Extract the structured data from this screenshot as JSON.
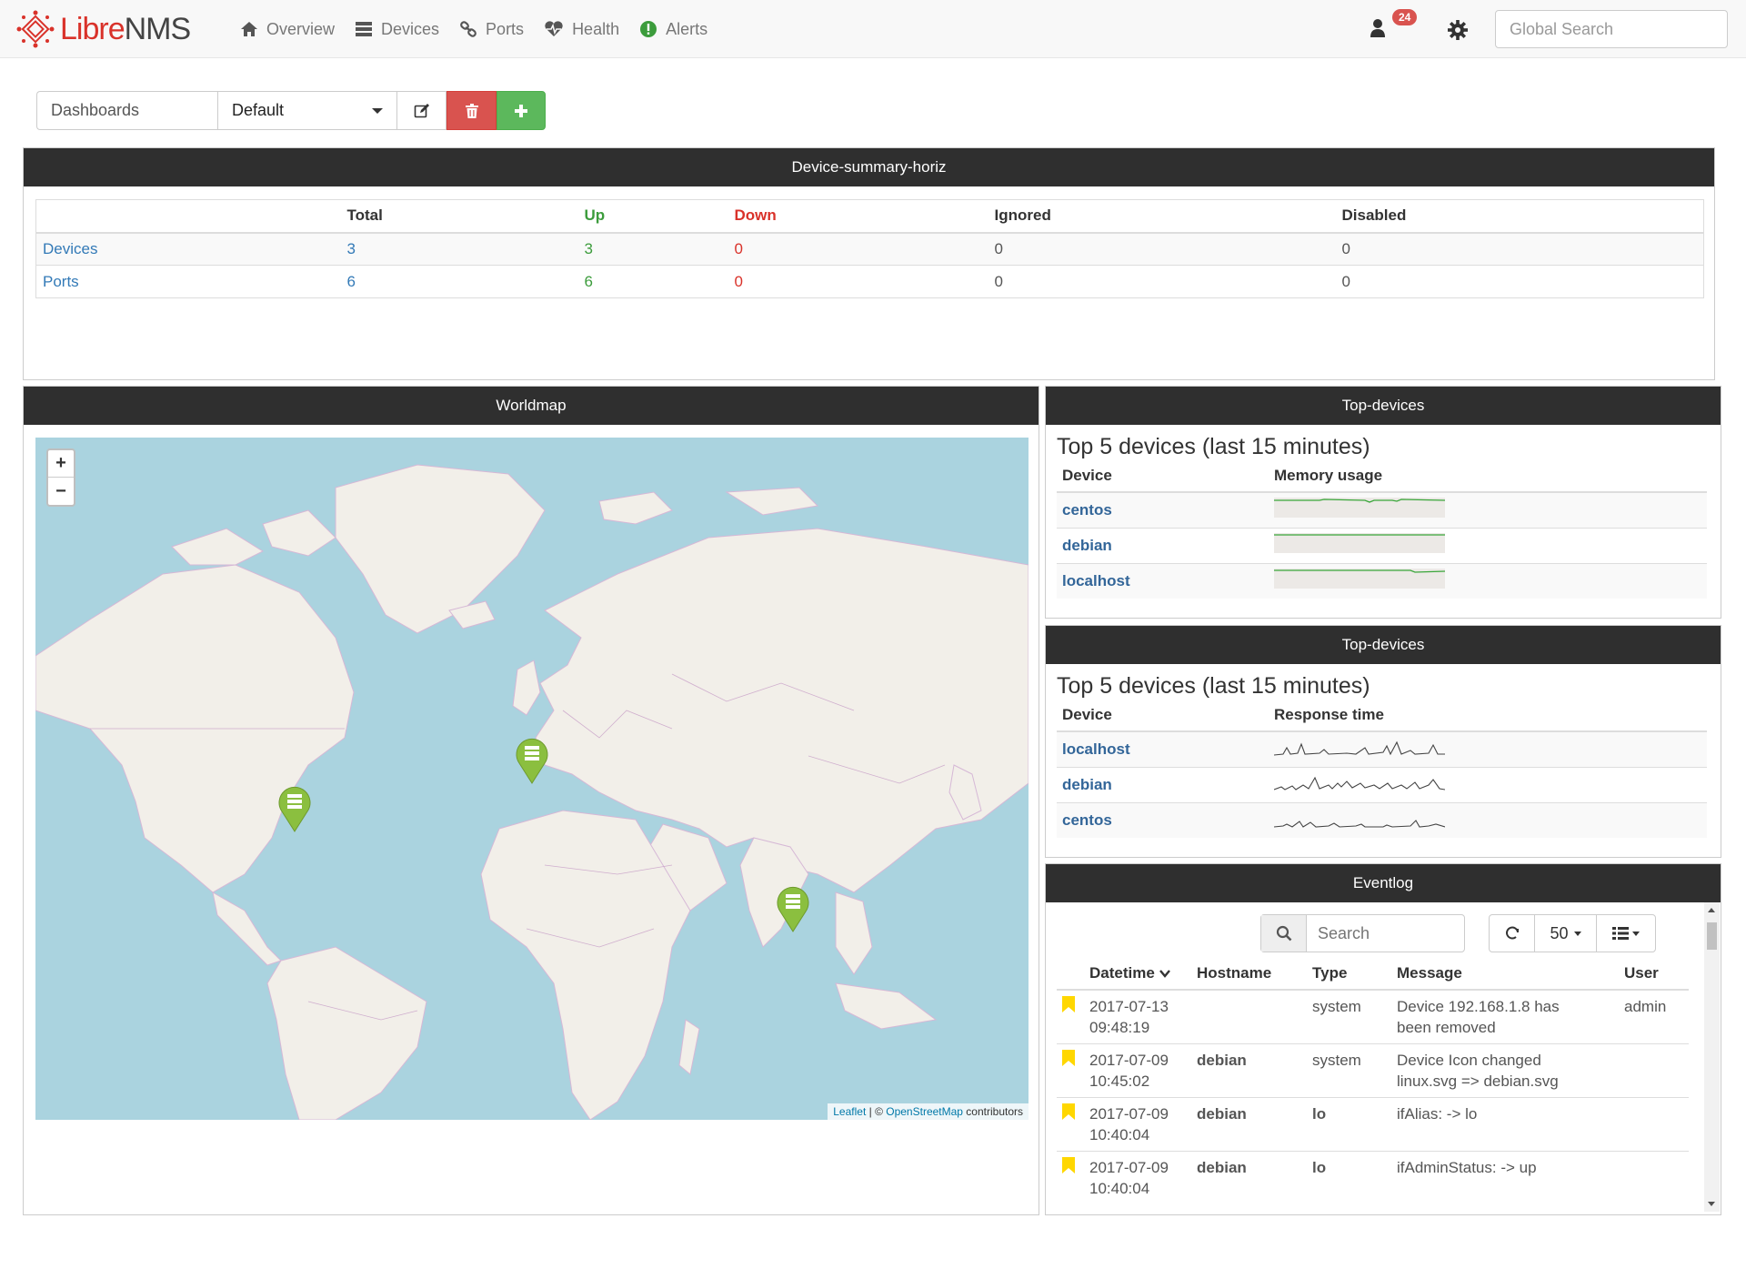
{
  "navbar": {
    "logo_part1": "Libre",
    "logo_part2": "NMS",
    "items": [
      {
        "label": "Overview",
        "icon": "home-icon"
      },
      {
        "label": "Devices",
        "icon": "server-icon"
      },
      {
        "label": "Ports",
        "icon": "link-icon"
      },
      {
        "label": "Health",
        "icon": "heartbeat-icon"
      },
      {
        "label": "Alerts",
        "icon": "exclamation-circle-icon"
      }
    ],
    "alert_count": "24",
    "search_placeholder": "Global Search"
  },
  "dashboard": {
    "label": "Dashboards",
    "selected": "Default"
  },
  "summary": {
    "title": "Device-summary-horiz",
    "headers": [
      "",
      "Total",
      "Up",
      "Down",
      "Ignored",
      "Disabled"
    ],
    "rows": [
      {
        "name": "Devices",
        "total": "3",
        "up": "3",
        "down": "0",
        "ignored": "0",
        "disabled": "0"
      },
      {
        "name": "Ports",
        "total": "6",
        "up": "6",
        "down": "0",
        "ignored": "0",
        "disabled": "0"
      }
    ]
  },
  "worldmap": {
    "title": "Worldmap",
    "zoom_in": "+",
    "zoom_out": "−",
    "attribution_leaflet": "Leaflet",
    "attribution_sep": " | © ",
    "attribution_osm": "OpenStreetMap",
    "attribution_tail": " contributors",
    "markers": [
      "server-marker-icon",
      "server-marker-icon",
      "server-marker-icon"
    ]
  },
  "top_memory": {
    "panel_title": "Top-devices",
    "title": "Top 5 devices (last 15 minutes)",
    "col_device": "Device",
    "col_metric": "Memory usage",
    "rows": [
      "centos",
      "debian",
      "localhost"
    ]
  },
  "top_response": {
    "panel_title": "Top-devices",
    "title": "Top 5 devices (last 15 minutes)",
    "col_device": "Device",
    "col_metric": "Response time",
    "rows": [
      "localhost",
      "debian",
      "centos"
    ]
  },
  "eventlog": {
    "title": "Eventlog",
    "search_placeholder": "Search",
    "page_size": "50",
    "headers": {
      "datetime": "Datetime",
      "hostname": "Hostname",
      "type": "Type",
      "message": "Message",
      "user": "User"
    },
    "rows": [
      {
        "date": "2017-07-13",
        "time": "09:48:19",
        "host": "",
        "type": "system",
        "type_link": false,
        "msg1": "Device 192.168.1.8 has",
        "msg2": "been removed",
        "user": "admin"
      },
      {
        "date": "2017-07-09",
        "time": "10:45:02",
        "host": "debian",
        "type": "system",
        "type_link": false,
        "msg1": "Device Icon changed",
        "msg2": "linux.svg => debian.svg",
        "user": ""
      },
      {
        "date": "2017-07-09",
        "time": "10:40:04",
        "host": "debian",
        "type": "lo",
        "type_link": true,
        "msg1": "ifAlias: -> lo",
        "msg2": "",
        "user": ""
      },
      {
        "date": "2017-07-09",
        "time": "10:40:04",
        "host": "debian",
        "type": "lo",
        "type_link": true,
        "msg1": "ifAdminStatus: -> up",
        "msg2": "",
        "user": ""
      }
    ]
  },
  "colors": {
    "brand_red": "#d9322a",
    "panel_header": "#2f2f2f",
    "link_blue": "#337ab7",
    "up_green": "#3c9c3c",
    "marker_green": "#8bbf3f"
  }
}
